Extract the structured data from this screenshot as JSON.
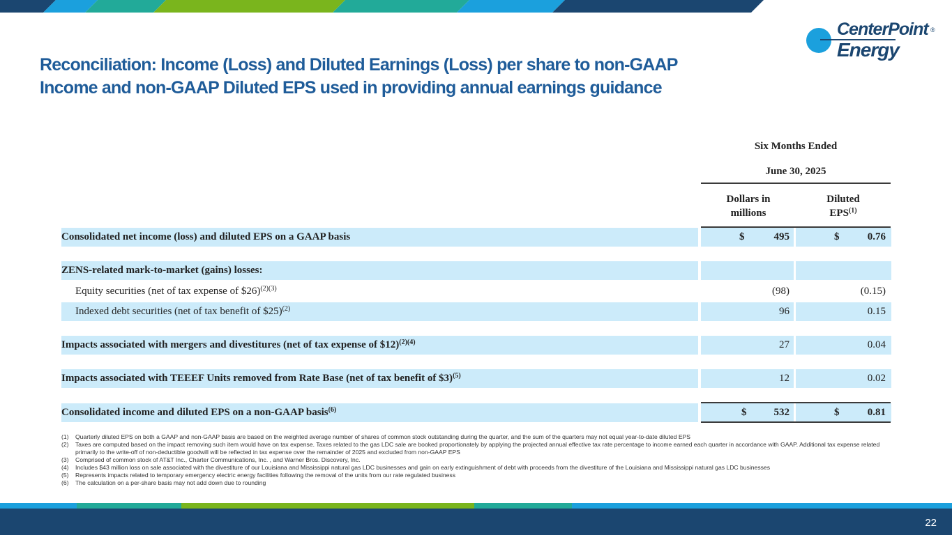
{
  "header": {
    "title_line1": "Reconciliation: Income (Loss) and Diluted Earnings (Loss) per share to non-GAAP",
    "title_line2": "Income and non-GAAP Diluted EPS used in providing annual earnings guidance"
  },
  "logo": {
    "line1": "CenterPoint",
    "line2": "Energy",
    "reg": "®"
  },
  "table": {
    "period_line1": "Six Months Ended",
    "period_line2": "June 30, 2025",
    "col1_line1": "Dollars in",
    "col1_line2": "millions",
    "col2_line1": "Diluted",
    "col2_line2": "EPS",
    "col2_sup": "(1)",
    "rows": [
      {
        "label": "Consolidated net income (loss) and diluted EPS on a GAAP basis",
        "sup": "",
        "cur1": "$",
        "val1": "495",
        "cur2": "$",
        "val2": "0.76"
      },
      {
        "label": "ZENS-related mark-to-market (gains) losses:",
        "sup": "",
        "cur1": "",
        "val1": "",
        "cur2": "",
        "val2": ""
      },
      {
        "label": "Equity securities (net of tax expense of $26)",
        "sup": "(2)(3)",
        "cur1": "",
        "val1": "(98)",
        "cur2": "",
        "val2": "(0.15)"
      },
      {
        "label": "Indexed debt securities (net of tax benefit of $25)",
        "sup": "(2)",
        "cur1": "",
        "val1": "96",
        "cur2": "",
        "val2": "0.15"
      },
      {
        "label": "Impacts associated with mergers and divestitures (net of tax expense of $12)",
        "sup": "(2)(4)",
        "cur1": "",
        "val1": "27",
        "cur2": "",
        "val2": "0.04"
      },
      {
        "label": "Impacts associated with TEEEF Units removed from Rate Base (net of tax benefit of $3)",
        "sup": "(5)",
        "cur1": "",
        "val1": "12",
        "cur2": "",
        "val2": "0.02"
      },
      {
        "label": "Consolidated income and diluted EPS on a non-GAAP basis",
        "sup": "(6)",
        "cur1": "$",
        "val1": "532",
        "cur2": "$",
        "val2": "0.81"
      }
    ]
  },
  "footnotes": [
    {
      "num": "(1)",
      "text": "Quarterly diluted EPS on both a GAAP and non-GAAP basis are based on the weighted average number of shares of common stock outstanding during the quarter, and the sum of the quarters may not equal year-to-date diluted EPS"
    },
    {
      "num": "(2)",
      "text": "Taxes are computed based on the impact removing such item would have on tax expense.  Taxes related to the gas LDC sale are booked proportionately by applying the projected annual effective tax rate percentage to income earned each quarter in accordance with GAAP.  Additional tax expense related primarily to the write-off of non-deductible goodwill will be reflected in tax expense over the remainder of 2025 and excluded from non-GAAP EPS"
    },
    {
      "num": "(3)",
      "text": "Comprised of common stock of AT&T Inc., Charter Communications, Inc. , and Warner Bros. Discovery, Inc."
    },
    {
      "num": "(4)",
      "text": "Includes $43 million loss on sale associated with the divestiture of our Louisiana and Mississippi natural gas LDC businesses and gain on early extinguishment of debt with proceeds from the divestiture of the Louisiana and Mississippi natural gas LDC businesses"
    },
    {
      "num": "(5)",
      "text": "Represents impacts related to temporary emergency electric energy facilities following the removal of the units from our rate regulated business"
    },
    {
      "num": "(6)",
      "text": "The calculation on a per-share basis may not add down due to rounding"
    }
  ],
  "page_number": "22",
  "colors": {
    "title": "#1f5c99",
    "navy": "#1b4670",
    "row_fill": "#ccebfa",
    "accent_blue": "#1ba0dd",
    "accent_teal": "#22aa99",
    "accent_green": "#7ab51d"
  }
}
